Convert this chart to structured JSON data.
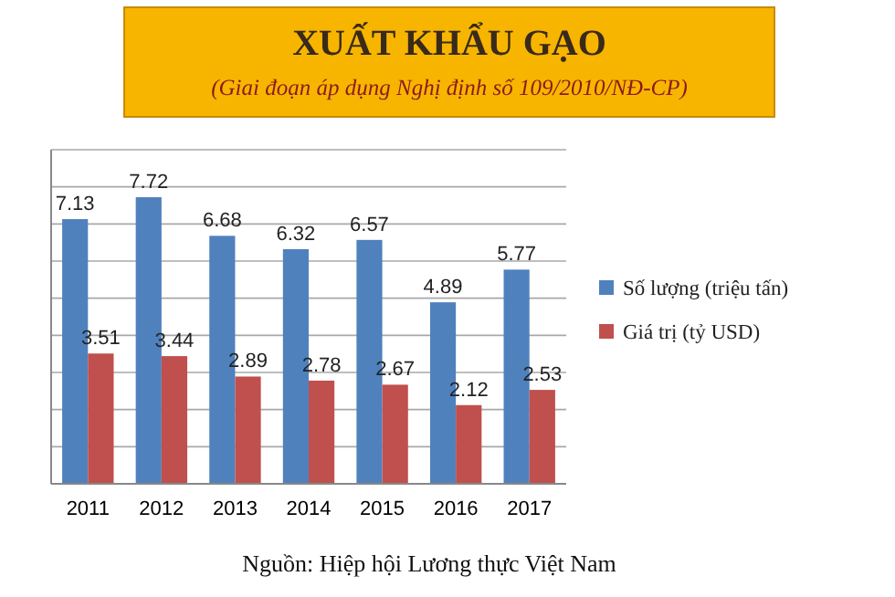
{
  "chart_data": {
    "type": "bar",
    "title": "XUẤT KHẨU GẠO",
    "subtitle": "(Giai đoạn áp dụng Nghị định số 109/2010/NĐ-CP)",
    "categories": [
      "2011",
      "2012",
      "2013",
      "2014",
      "2015",
      "2016",
      "2017"
    ],
    "series": [
      {
        "name": "Số lượng (triệu tấn)",
        "color": "#4f81bd",
        "values": [
          7.13,
          7.72,
          6.68,
          6.32,
          6.57,
          4.89,
          5.77
        ]
      },
      {
        "name": "Giá trị (tỷ USD)",
        "color": "#c0504d",
        "values": [
          3.51,
          3.44,
          2.89,
          2.78,
          2.67,
          2.12,
          2.53
        ]
      }
    ],
    "ylim": [
      0,
      9
    ],
    "yticks": [
      {
        "value": 0,
        "label": null
      },
      {
        "value": 1,
        "label": null
      },
      {
        "value": 2,
        "label": null
      },
      {
        "value": 3,
        "label": null
      },
      {
        "value": 4,
        "label": null
      },
      {
        "value": 5,
        "label": null
      },
      {
        "value": 6,
        "label": null
      },
      {
        "value": 7,
        "label": null
      },
      {
        "value": 8,
        "label": null
      },
      {
        "value": 9,
        "label": null
      }
    ],
    "tick_labels": "x",
    "grid": "y",
    "legend": "right",
    "data_labels": true,
    "annotations": [
      "Nguồn: Hiệp hội Lương thực Việt Nam"
    ]
  }
}
